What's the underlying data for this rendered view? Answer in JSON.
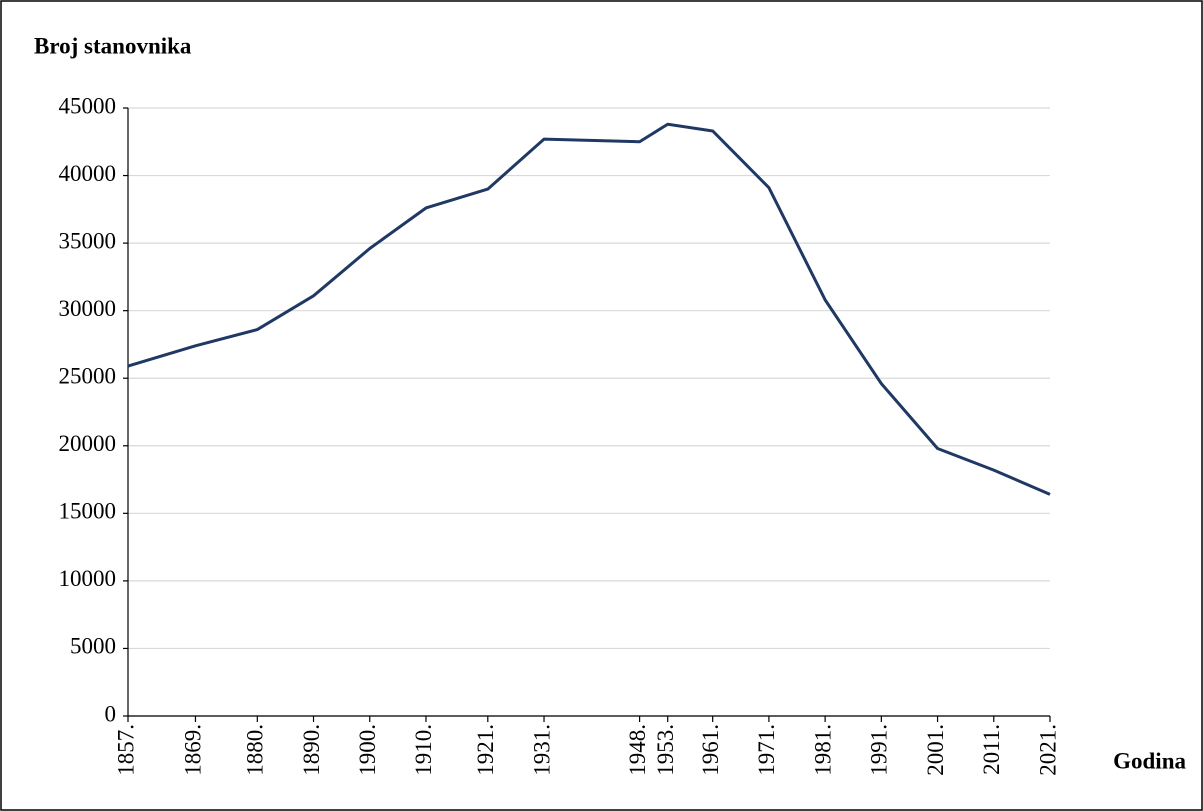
{
  "chart_data": {
    "type": "line",
    "title": "Broj stanovnika",
    "x_label": "Godina",
    "x": [
      1857,
      1869,
      1880,
      1890,
      1900,
      1910,
      1921,
      1931,
      1948,
      1953,
      1961,
      1971,
      1981,
      1991,
      2001,
      2011,
      2021
    ],
    "values": [
      25900,
      27400,
      28600,
      31100,
      34600,
      37600,
      39000,
      42700,
      42500,
      43800,
      43300,
      39100,
      30800,
      24600,
      19800,
      18200,
      16400
    ],
    "color": "#1f3864",
    "xlim": [
      1857,
      2021
    ],
    "xticks": [
      {
        "value": 1857,
        "label": "1857."
      },
      {
        "value": 1869,
        "label": "1869."
      },
      {
        "value": 1880,
        "label": "1880."
      },
      {
        "value": 1890,
        "label": "1890."
      },
      {
        "value": 1900,
        "label": "1900."
      },
      {
        "value": 1910,
        "label": "1910."
      },
      {
        "value": 1921,
        "label": "1921."
      },
      {
        "value": 1931,
        "label": "1931."
      },
      {
        "value": 1948,
        "label": "1948."
      },
      {
        "value": 1953,
        "label": "1953."
      },
      {
        "value": 1961,
        "label": "1961."
      },
      {
        "value": 1971,
        "label": "1971."
      },
      {
        "value": 1981,
        "label": "1981."
      },
      {
        "value": 1991,
        "label": "1991."
      },
      {
        "value": 2001,
        "label": "2001."
      },
      {
        "value": 2011,
        "label": "2011."
      },
      {
        "value": 2021,
        "label": "2021."
      }
    ],
    "ylim": [
      0,
      45000
    ],
    "yticks": [
      0,
      5000,
      10000,
      15000,
      20000,
      25000,
      30000,
      35000,
      40000,
      45000
    ],
    "grid": true
  }
}
